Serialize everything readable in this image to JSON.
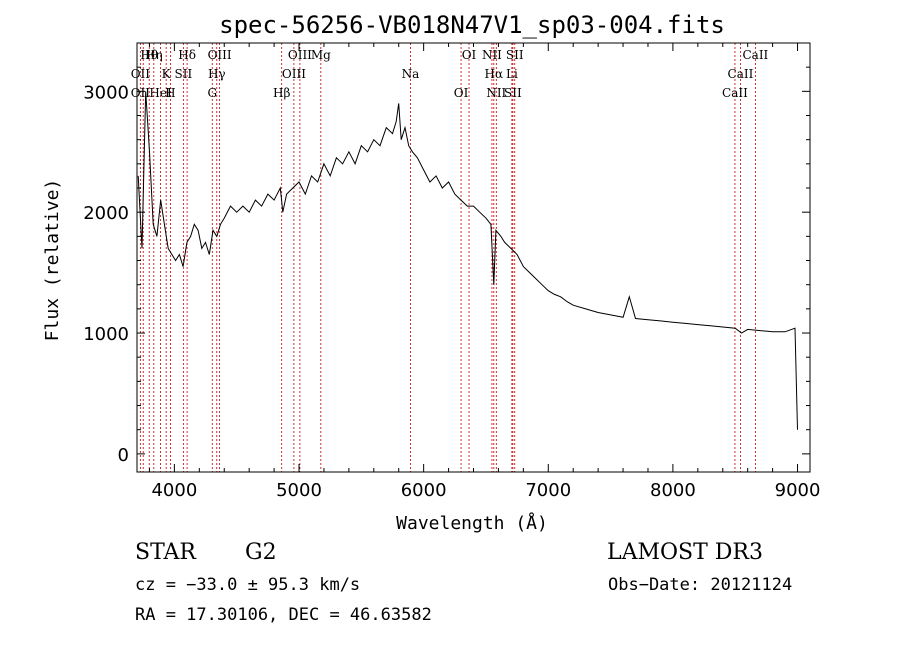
{
  "chart_data": {
    "type": "line",
    "title": "spec-56256-VB018N47V1_sp03-004.fits",
    "xlabel": "Wavelength (Å)",
    "ylabel": "Flux (relative)",
    "xlim": [
      3700,
      9100
    ],
    "ylim": [
      -150,
      3400
    ],
    "x_ticks": [
      4000,
      5000,
      6000,
      7000,
      8000,
      9000
    ],
    "x_tick_labels": [
      "4000",
      "5000",
      "6000",
      "7000",
      "8000",
      "9000"
    ],
    "y_ticks": [
      0,
      1000,
      2000,
      3000
    ],
    "y_tick_labels": [
      "0",
      "1000",
      "2000",
      "3000"
    ],
    "series": [
      {
        "name": "flux",
        "x": [
          3710,
          3740,
          3770,
          3800,
          3830,
          3860,
          3890,
          3920,
          3950,
          3980,
          4010,
          4040,
          4070,
          4100,
          4130,
          4160,
          4190,
          4220,
          4250,
          4280,
          4310,
          4340,
          4370,
          4400,
          4450,
          4500,
          4550,
          4600,
          4650,
          4700,
          4750,
          4800,
          4850,
          4870,
          4900,
          4950,
          5000,
          5050,
          5100,
          5150,
          5200,
          5250,
          5300,
          5350,
          5400,
          5450,
          5500,
          5550,
          5600,
          5650,
          5700,
          5750,
          5780,
          5800,
          5820,
          5850,
          5880,
          5910,
          5950,
          6000,
          6050,
          6100,
          6150,
          6200,
          6250,
          6300,
          6350,
          6400,
          6450,
          6500,
          6540,
          6563,
          6580,
          6620,
          6650,
          6700,
          6750,
          6800,
          6850,
          6900,
          6950,
          7000,
          7050,
          7100,
          7150,
          7200,
          7300,
          7400,
          7500,
          7600,
          7650,
          7700,
          7800,
          7900,
          8000,
          8100,
          8200,
          8300,
          8400,
          8500,
          8550,
          8600,
          8700,
          8800,
          8900,
          8980,
          9000
        ],
        "y": [
          2300,
          1700,
          3000,
          2500,
          1900,
          1800,
          2100,
          1900,
          1700,
          1650,
          1600,
          1650,
          1550,
          1750,
          1800,
          1900,
          1850,
          1700,
          1750,
          1650,
          1850,
          1800,
          1900,
          1950,
          2050,
          2000,
          2050,
          2000,
          2100,
          2050,
          2150,
          2100,
          2200,
          2000,
          2150,
          2200,
          2250,
          2150,
          2300,
          2250,
          2400,
          2300,
          2450,
          2400,
          2500,
          2400,
          2550,
          2500,
          2600,
          2550,
          2700,
          2650,
          2750,
          2900,
          2600,
          2700,
          2550,
          2500,
          2450,
          2350,
          2250,
          2300,
          2200,
          2250,
          2150,
          2100,
          2050,
          2050,
          2000,
          1950,
          1900,
          1400,
          1850,
          1800,
          1750,
          1700,
          1650,
          1550,
          1500,
          1450,
          1400,
          1350,
          1320,
          1300,
          1260,
          1230,
          1200,
          1170,
          1150,
          1130,
          1300,
          1120,
          1110,
          1100,
          1090,
          1080,
          1070,
          1060,
          1050,
          1040,
          1000,
          1030,
          1020,
          1010,
          1010,
          1040,
          200
        ]
      }
    ],
    "line_labels": [
      {
        "text": "Hθ",
        "wavelength": 3798
      },
      {
        "text": "OII",
        "wavelength": 3727
      },
      {
        "text": "OII",
        "wavelength": 3727
      },
      {
        "text": "Hη",
        "wavelength": 3835
      },
      {
        "text": "K",
        "wavelength": 3934
      },
      {
        "text": "HeI",
        "wavelength": 3889
      },
      {
        "text": "Hδ",
        "wavelength": 4102
      },
      {
        "text": "SII",
        "wavelength": 4072
      },
      {
        "text": "H",
        "wavelength": 3968
      },
      {
        "text": "OIII",
        "wavelength": 4363
      },
      {
        "text": "Hγ",
        "wavelength": 4340
      },
      {
        "text": "G",
        "wavelength": 4304
      },
      {
        "text": "OIII",
        "wavelength": 5007
      },
      {
        "text": "OIII",
        "wavelength": 4959
      },
      {
        "text": "Hβ",
        "wavelength": 4861
      },
      {
        "text": "Mg",
        "wavelength": 5175
      },
      {
        "text": "Na",
        "wavelength": 5894
      },
      {
        "text": "OI",
        "wavelength": 6300
      },
      {
        "text": "OI",
        "wavelength": 6364
      },
      {
        "text": "Hα",
        "wavelength": 6563
      },
      {
        "text": "SII",
        "wavelength": 6716
      },
      {
        "text": "NII",
        "wavelength": 6548
      },
      {
        "text": "Li",
        "wavelength": 6708
      },
      {
        "text": "NII",
        "wavelength": 6583
      },
      {
        "text": "SII",
        "wavelength": 6731
      },
      {
        "text": "CaII",
        "wavelength": 8542
      },
      {
        "text": "CaII",
        "wavelength": 8498
      },
      {
        "text": "CaII",
        "wavelength": 8662
      }
    ],
    "marker_lines": [
      3727,
      3750,
      3798,
      3835,
      3889,
      3934,
      3968,
      4072,
      4102,
      4304,
      4340,
      4363,
      4861,
      4959,
      5007,
      5175,
      5894,
      6300,
      6364,
      6548,
      6563,
      6583,
      6708,
      6716,
      6731,
      8498,
      8542,
      8662
    ]
  },
  "info": {
    "object_type": "STAR",
    "subclass": "G2",
    "survey": "LAMOST DR3",
    "cz": "cz = −33.0 ± 95.3 km/s",
    "obs_date": "Obs−Date: 20121124",
    "ra_dec": "RA =  17.30106, DEC =  46.63582"
  },
  "colors": {
    "marker_line": "#c00000",
    "spectrum": "#000000",
    "axis": "#000000"
  }
}
